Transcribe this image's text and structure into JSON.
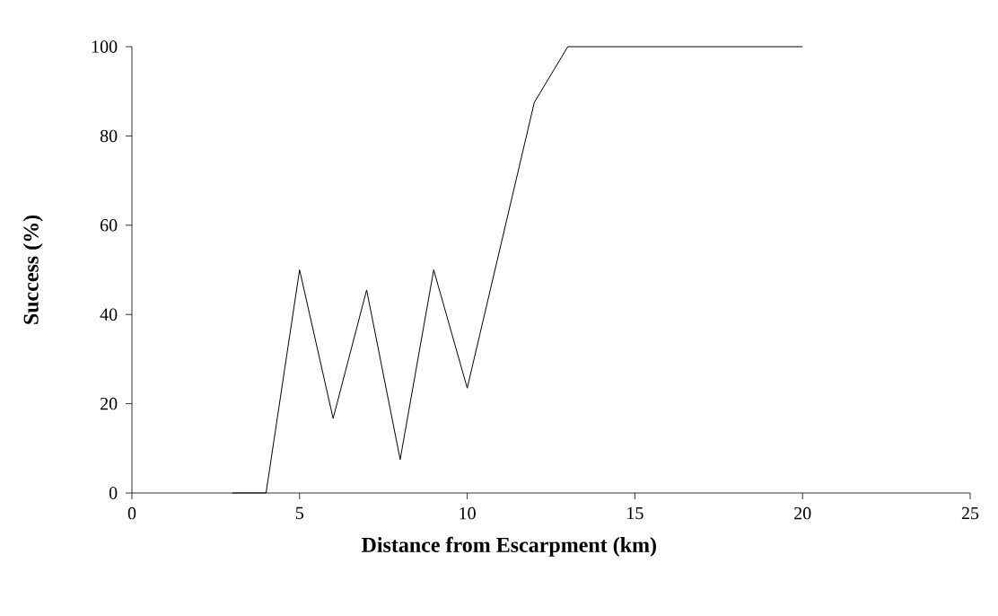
{
  "chart_data": {
    "type": "line",
    "xlabel": "Distance from Escarpment (km)",
    "ylabel": "Success (%)",
    "x": [
      3,
      4,
      5,
      6,
      7,
      8,
      9,
      10,
      11,
      12,
      13,
      14,
      15,
      16,
      17,
      18,
      19,
      20
    ],
    "values": [
      0,
      0,
      50,
      16.7,
      45.5,
      7.5,
      50,
      23.5,
      55.5,
      87.5,
      100,
      100,
      100,
      100,
      100,
      100,
      100,
      100
    ],
    "color": "#000000",
    "xlim": [
      0,
      25
    ],
    "ylim": [
      0,
      100
    ],
    "xticks": [
      0,
      5,
      10,
      15,
      20,
      25
    ],
    "yticks": [
      0,
      20,
      40,
      60,
      80,
      100
    ],
    "grid": false,
    "marker": "none",
    "line_style": "solid"
  }
}
